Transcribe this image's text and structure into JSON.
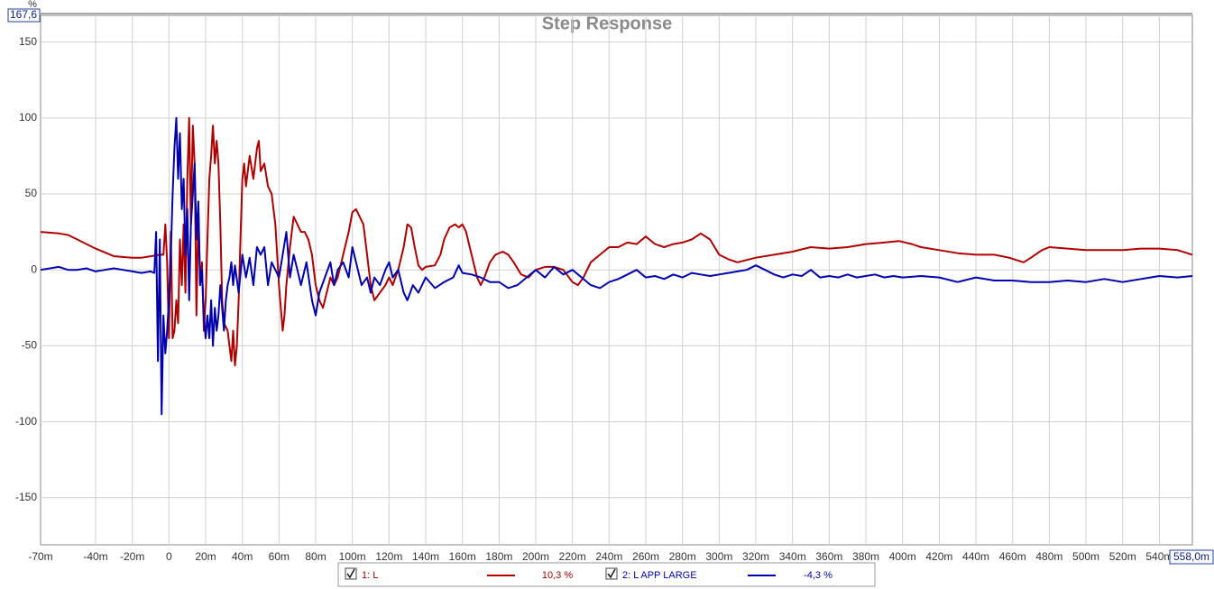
{
  "chart_data": {
    "type": "line",
    "title": "Step Response",
    "ylabel": "%",
    "xlim": [
      -70,
      558
    ],
    "ylim": [
      -181,
      167.6
    ],
    "grid": true,
    "yticks": [
      {
        "value": 167.6,
        "label": "167,6"
      },
      150,
      100,
      50,
      0,
      -50,
      -100,
      -150
    ],
    "xticks": [
      {
        "value": -70,
        "label": "-70m"
      },
      {
        "value": -40,
        "label": "-40m"
      },
      {
        "value": -20,
        "label": "-20m"
      },
      0,
      {
        "value": 20,
        "label": "20m"
      },
      {
        "value": 40,
        "label": "40m"
      },
      {
        "value": 60,
        "label": "60m"
      },
      {
        "value": 80,
        "label": "80m"
      },
      {
        "value": 100,
        "label": "100m"
      },
      {
        "value": 120,
        "label": "120m"
      },
      {
        "value": 140,
        "label": "140m"
      },
      {
        "value": 160,
        "label": "160m"
      },
      {
        "value": 180,
        "label": "180m"
      },
      {
        "value": 200,
        "label": "200m"
      },
      {
        "value": 220,
        "label": "220m"
      },
      {
        "value": 240,
        "label": "240m"
      },
      {
        "value": 260,
        "label": "260m"
      },
      {
        "value": 280,
        "label": "280m"
      },
      {
        "value": 300,
        "label": "300m"
      },
      {
        "value": 320,
        "label": "320m"
      },
      {
        "value": 340,
        "label": "340m"
      },
      {
        "value": 360,
        "label": "360m"
      },
      {
        "value": 380,
        "label": "380m"
      },
      {
        "value": 400,
        "label": "400m"
      },
      {
        "value": 420,
        "label": "420m"
      },
      {
        "value": 440,
        "label": "440m"
      },
      {
        "value": 460,
        "label": "460m"
      },
      {
        "value": 480,
        "label": "480m"
      },
      {
        "value": 500,
        "label": "500m"
      },
      {
        "value": 520,
        "label": "520m"
      },
      {
        "value": 540,
        "label": "540m"
      },
      {
        "value": 558,
        "label": "558,0m"
      }
    ],
    "series": [
      {
        "name": "1: L",
        "color": "#b00000",
        "readout": "10,3 %",
        "x": [
          -70,
          -60,
          -55,
          -50,
          -40,
          -30,
          -20,
          -15,
          -10,
          -5,
          -3,
          -2,
          -1,
          0,
          1,
          2,
          3,
          4,
          5,
          6,
          7,
          8,
          9,
          10,
          11,
          12,
          13,
          14,
          15,
          16,
          17,
          18,
          19,
          20,
          21,
          22,
          23,
          24,
          25,
          26,
          27,
          28,
          29,
          30,
          32,
          33,
          34,
          35,
          36,
          37,
          38,
          39,
          40,
          41,
          42,
          44,
          46,
          48,
          49,
          50,
          52,
          54,
          56,
          58,
          60,
          62,
          63,
          64,
          66,
          68,
          70,
          72,
          74,
          76,
          78,
          80,
          82,
          84,
          86,
          88,
          90,
          92,
          95,
          98,
          100,
          102,
          104,
          106,
          108,
          110,
          112,
          115,
          118,
          120,
          122,
          125,
          128,
          130,
          132,
          134,
          136,
          138,
          140,
          145,
          148,
          150,
          153,
          156,
          158,
          160,
          162,
          164,
          166,
          168,
          170,
          172,
          175,
          178,
          182,
          185,
          188,
          192,
          196,
          200,
          205,
          210,
          215,
          220,
          223,
          226,
          230,
          235,
          240,
          245,
          250,
          255,
          260,
          265,
          270,
          275,
          280,
          285,
          290,
          295,
          300,
          305,
          310,
          320,
          330,
          340,
          350,
          360,
          370,
          380,
          390,
          398,
          405,
          410,
          420,
          430,
          440,
          450,
          458,
          466,
          470,
          476,
          480,
          490,
          500,
          510,
          520,
          530,
          540,
          550,
          558
        ],
        "values": [
          25,
          24,
          23,
          20,
          14,
          9,
          8,
          8,
          9,
          10,
          10,
          30,
          5,
          -45,
          25,
          -45,
          -40,
          -20,
          -35,
          20,
          -10,
          30,
          -15,
          60,
          100,
          30,
          95,
          70,
          -30,
          40,
          -10,
          5,
          -40,
          -20,
          20,
          60,
          75,
          95,
          70,
          85,
          70,
          30,
          -20,
          -35,
          -40,
          -50,
          -60,
          -40,
          -63,
          -50,
          -20,
          20,
          60,
          70,
          55,
          75,
          60,
          80,
          85,
          65,
          70,
          55,
          50,
          30,
          -10,
          -40,
          -30,
          -10,
          15,
          35,
          30,
          25,
          25,
          20,
          10,
          -10,
          -20,
          -25,
          -15,
          -5,
          -10,
          -5,
          10,
          25,
          38,
          40,
          35,
          30,
          10,
          -10,
          -20,
          -15,
          -10,
          -5,
          -10,
          0,
          15,
          30,
          28,
          15,
          3,
          0,
          2,
          3,
          10,
          20,
          28,
          30,
          28,
          30,
          25,
          15,
          5,
          -5,
          -10,
          -5,
          5,
          10,
          12,
          10,
          5,
          -3,
          -5,
          0,
          2,
          2,
          0,
          -8,
          -10,
          -5,
          5,
          10,
          15,
          15,
          18,
          17,
          22,
          17,
          15,
          17,
          18,
          20,
          24,
          20,
          10,
          7,
          5,
          8,
          10,
          12,
          15,
          14,
          15,
          17,
          18,
          19,
          17,
          15,
          13,
          11,
          10,
          10,
          8,
          5,
          8,
          13,
          15,
          14,
          13,
          13,
          13,
          14,
          14,
          13,
          10
        ]
      },
      {
        "name": "2: L APP LARGE",
        "color": "#0000b0",
        "readout": "-4,3 %",
        "x": [
          -70,
          -60,
          -55,
          -50,
          -45,
          -40,
          -35,
          -30,
          -25,
          -20,
          -15,
          -10,
          -8,
          -7,
          -6,
          -5,
          -4,
          -3,
          -2,
          -1,
          0,
          1,
          2,
          3,
          4,
          5,
          6,
          7,
          8,
          9,
          10,
          11,
          12,
          13,
          14,
          15,
          16,
          17,
          18,
          19,
          20,
          21,
          22,
          23,
          24,
          25,
          26,
          27,
          28,
          29,
          30,
          31,
          32,
          33,
          34,
          35,
          36,
          38,
          40,
          42,
          44,
          46,
          48,
          50,
          52,
          54,
          56,
          58,
          60,
          62,
          64,
          66,
          68,
          70,
          72,
          75,
          78,
          80,
          82,
          85,
          88,
          90,
          92,
          95,
          98,
          100,
          103,
          105,
          108,
          110,
          112,
          115,
          118,
          120,
          122,
          125,
          128,
          130,
          133,
          136,
          140,
          145,
          150,
          155,
          158,
          160,
          165,
          170,
          175,
          180,
          185,
          190,
          195,
          200,
          205,
          210,
          215,
          220,
          225,
          230,
          235,
          240,
          245,
          250,
          255,
          260,
          265,
          270,
          275,
          280,
          285,
          290,
          295,
          300,
          305,
          310,
          315,
          320,
          325,
          330,
          335,
          340,
          345,
          350,
          355,
          360,
          365,
          370,
          375,
          380,
          385,
          390,
          395,
          400,
          410,
          420,
          430,
          440,
          450,
          460,
          470,
          480,
          490,
          500,
          510,
          520,
          530,
          540,
          550,
          558
        ],
        "values": [
          0,
          2,
          0,
          0,
          1,
          -1,
          0,
          1,
          0,
          -1,
          -2,
          -1,
          -2,
          25,
          -60,
          20,
          -95,
          -30,
          -55,
          -40,
          -20,
          10,
          50,
          80,
          100,
          60,
          90,
          40,
          60,
          10,
          40,
          -20,
          30,
          50,
          70,
          20,
          45,
          -10,
          0,
          -30,
          -45,
          -30,
          -45,
          -20,
          -50,
          -25,
          -40,
          -30,
          -10,
          -25,
          -40,
          -20,
          -10,
          -5,
          5,
          -10,
          3,
          -15,
          10,
          -5,
          8,
          -10,
          15,
          10,
          15,
          -10,
          5,
          0,
          -5,
          10,
          25,
          -5,
          10,
          0,
          -10,
          5,
          -20,
          -30,
          -15,
          -5,
          5,
          -10,
          0,
          5,
          -5,
          15,
          0,
          -10,
          -5,
          -15,
          -5,
          -10,
          0,
          5,
          -5,
          0,
          -15,
          -20,
          -10,
          -15,
          -5,
          -12,
          -8,
          -5,
          3,
          -2,
          -3,
          -5,
          -8,
          -8,
          -12,
          -10,
          -5,
          0,
          -5,
          2,
          -3,
          0,
          -5,
          -10,
          -12,
          -8,
          -6,
          -3,
          0,
          -5,
          -4,
          -6,
          -3,
          -5,
          -2,
          -3,
          -4,
          -3,
          -2,
          -1,
          0,
          3,
          0,
          -3,
          -5,
          -3,
          -4,
          0,
          -5,
          -4,
          -5,
          -3,
          -5,
          -4,
          -3,
          -5,
          -4,
          -5,
          -4,
          -5,
          -8,
          -5,
          -7,
          -7,
          -8,
          -8,
          -7,
          -8,
          -6,
          -8,
          -6,
          -4,
          -5,
          -4
        ]
      }
    ]
  }
}
